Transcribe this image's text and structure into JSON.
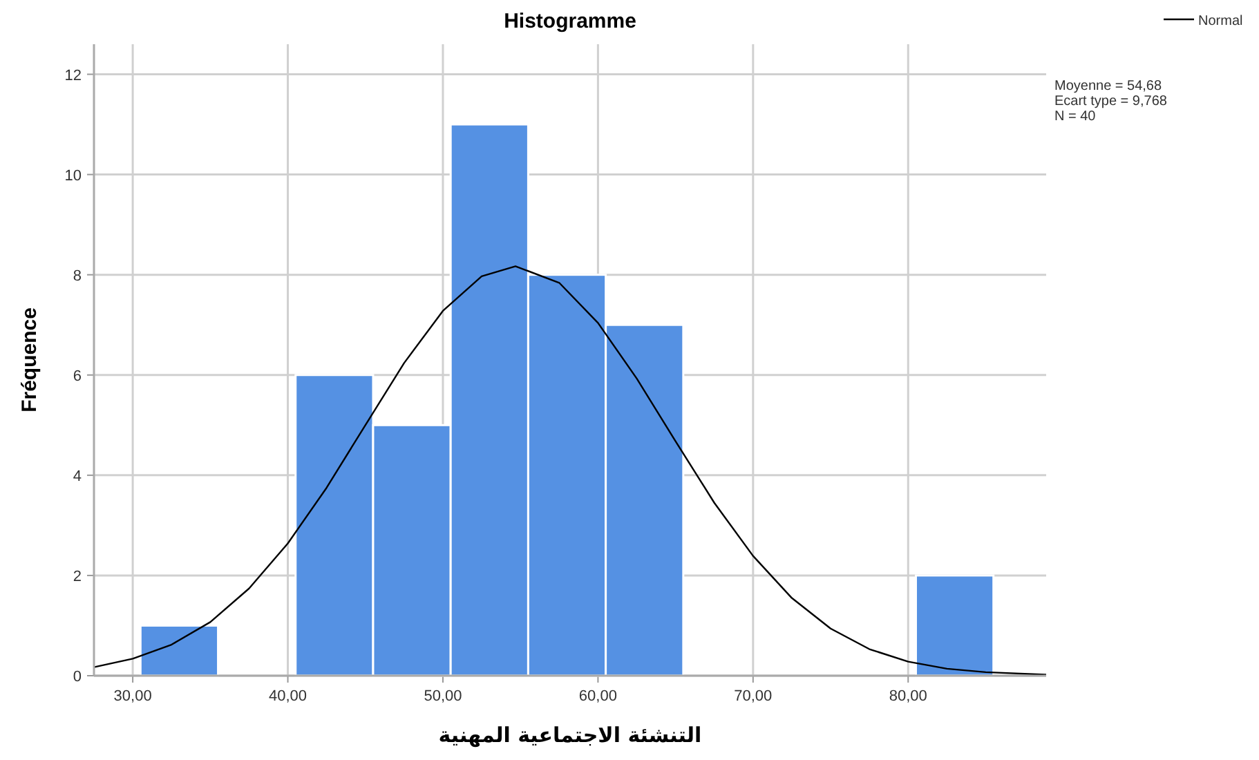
{
  "chart_data": {
    "type": "histogram",
    "title": "Histogramme",
    "xlabel": "التنشئة الاجتماعية المهنية",
    "ylabel": "Fréquence",
    "bins": [
      30.5,
      35.5,
      40.5,
      45.5,
      50.5,
      55.5,
      60.5,
      65.5,
      70.5,
      75.5,
      80.5,
      85.5
    ],
    "values": [
      1,
      0,
      6,
      5,
      11,
      8,
      7,
      0,
      0,
      0,
      2
    ],
    "color": "#5591e3",
    "series": [
      {
        "name": "Normal",
        "type": "line",
        "color": "#000000",
        "x": [
          27.5,
          30,
          32.5,
          35,
          37.5,
          40,
          42.5,
          45,
          47.5,
          50,
          52.5,
          54.68,
          57.5,
          60,
          62.5,
          65,
          67.5,
          70,
          72.5,
          75,
          77.5,
          80,
          82.5,
          85,
          88.9
        ],
        "values": [
          0.17,
          0.34,
          0.62,
          1.07,
          1.74,
          2.64,
          3.75,
          5.0,
          6.24,
          7.28,
          7.97,
          8.17,
          7.84,
          7.04,
          5.93,
          4.68,
          3.45,
          2.39,
          1.55,
          0.94,
          0.53,
          0.28,
          0.14,
          0.07,
          0.02
        ]
      }
    ],
    "xlim": [
      27.5,
      88.9
    ],
    "ylim": [
      0,
      12.6
    ],
    "xticks": [
      {
        "value": 30,
        "label": "30,00"
      },
      {
        "value": 40,
        "label": "40,00"
      },
      {
        "value": 50,
        "label": "50,00"
      },
      {
        "value": 60,
        "label": "60,00"
      },
      {
        "value": 70,
        "label": "70,00"
      },
      {
        "value": 80,
        "label": "80,00"
      }
    ],
    "yticks": [
      0,
      2,
      4,
      6,
      8,
      10,
      12
    ],
    "grid": true,
    "legend": "top right",
    "annotations": [
      "Moyenne = 54,68",
      "Ecart type = 9,768",
      "N = 40"
    ]
  }
}
